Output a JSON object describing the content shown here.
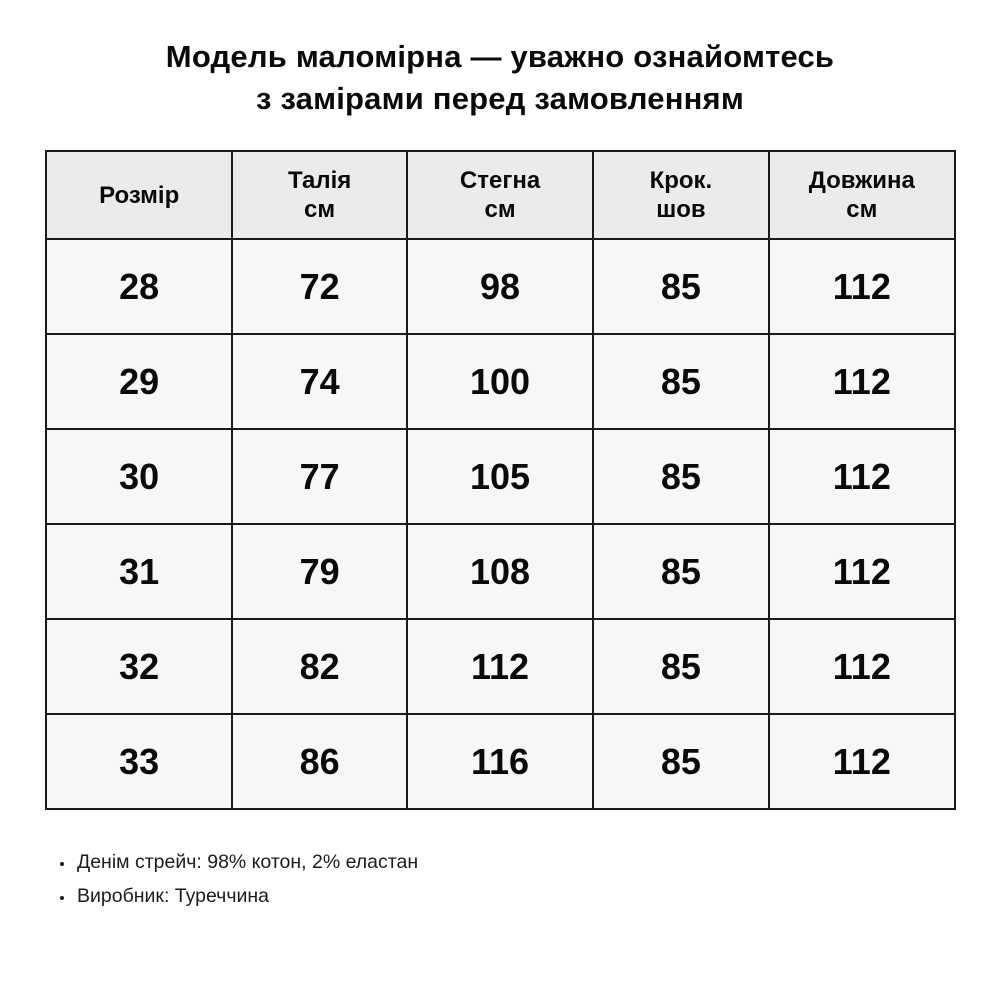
{
  "title": {
    "line1": "Модель маломірна — уважно ознайомтесь",
    "line2": "з замірами перед замовленням"
  },
  "table": {
    "headers": [
      "Розмір",
      "Талія\nсм",
      "Стегна\nсм",
      "Крок.\nшов",
      "Довжина\nсм"
    ],
    "rows": [
      [
        "28",
        "72",
        "98",
        "85",
        "112"
      ],
      [
        "29",
        "74",
        "100",
        "85",
        "112"
      ],
      [
        "30",
        "77",
        "105",
        "85",
        "112"
      ],
      [
        "31",
        "79",
        "108",
        "85",
        "112"
      ],
      [
        "32",
        "82",
        "112",
        "85",
        "112"
      ],
      [
        "33",
        "86",
        "116",
        "85",
        "112"
      ]
    ]
  },
  "notes": [
    "Денім стрейч: 98% котон, 2% еластан",
    "Виробник: Туреччина"
  ],
  "colors": {
    "page_bg": "#ffffff",
    "header_bg": "#ebebeb",
    "cell_bg": "#f7f7f7",
    "border": "#1a1a1a",
    "text": "#0a0a0a"
  },
  "chart_data": {
    "type": "table",
    "title": "Модель маломірна — уважно ознайомтесь з замірами перед замовленням",
    "columns": [
      "Розмір",
      "Талія см",
      "Стегна см",
      "Крок. шов",
      "Довжина см"
    ],
    "rows": [
      [
        28,
        72,
        98,
        85,
        112
      ],
      [
        29,
        74,
        100,
        85,
        112
      ],
      [
        30,
        77,
        105,
        85,
        112
      ],
      [
        31,
        79,
        108,
        85,
        112
      ],
      [
        32,
        82,
        112,
        85,
        112
      ],
      [
        33,
        86,
        116,
        85,
        112
      ]
    ],
    "notes": [
      "Денім стрейч: 98% котон, 2% еластан",
      "Виробник: Туреччина"
    ]
  }
}
